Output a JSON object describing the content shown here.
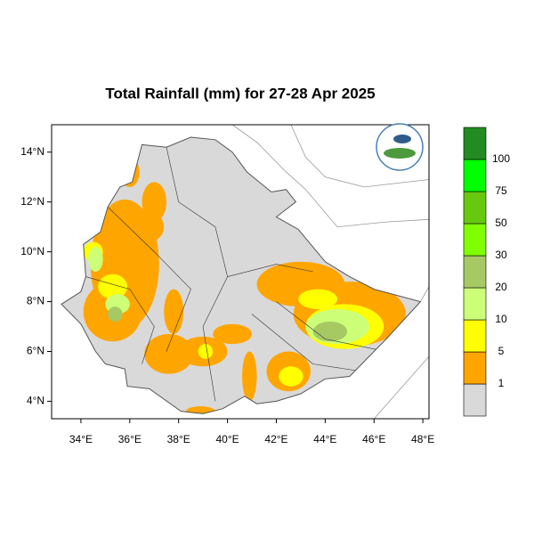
{
  "title": "Total Rainfall (mm) for 27-28 Apr 2025",
  "map": {
    "xlim": [
      32.8,
      48.25
    ],
    "ylim": [
      3.3,
      15.1
    ],
    "xticks": [
      {
        "value": 34,
        "label": "34°E"
      },
      {
        "value": 36,
        "label": "36°E"
      },
      {
        "value": 38,
        "label": "38°E"
      },
      {
        "value": 40,
        "label": "40°E"
      },
      {
        "value": 42,
        "label": "42°E"
      },
      {
        "value": 44,
        "label": "44°E"
      },
      {
        "value": 46,
        "label": "46°E"
      },
      {
        "value": 48,
        "label": "48°E"
      }
    ],
    "yticks": [
      {
        "value": 4,
        "label": "4°N"
      },
      {
        "value": 6,
        "label": "6°N"
      },
      {
        "value": 8,
        "label": "8°N"
      },
      {
        "value": 10,
        "label": "10°N"
      },
      {
        "value": 12,
        "label": "12°N"
      },
      {
        "value": 14,
        "label": "14°N"
      }
    ]
  },
  "legend": {
    "colors": [
      "#d9d9d9",
      "#ffa500",
      "#ffff00",
      "#ccff77",
      "#a6c964",
      "#80ff00",
      "#66c80f",
      "#00ff00",
      "#228b22"
    ],
    "labels": [
      "1",
      "5",
      "10",
      "20",
      "30",
      "50",
      "75",
      "100"
    ]
  }
}
